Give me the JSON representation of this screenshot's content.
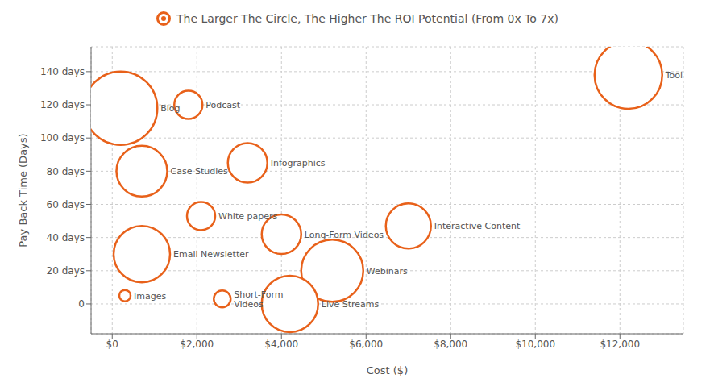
{
  "chart_data": {
    "type": "scatter",
    "title": "The Larger The Circle, The Higher The ROI Potential (From 0x To 7x)",
    "xlabel": "Cost ($)",
    "ylabel": "Pay Back Time (Days)",
    "color": "#E8611A",
    "grid": true,
    "points": [
      {
        "label": "Blog",
        "x": 200,
        "y": 118,
        "roi": 6.5
      },
      {
        "label": "Podcast",
        "x": 1800,
        "y": 120,
        "roi": 2.5
      },
      {
        "label": "Case Studies",
        "x": 700,
        "y": 80,
        "roi": 4.5
      },
      {
        "label": "Infographics",
        "x": 3200,
        "y": 85,
        "roi": 3.5
      },
      {
        "label": "White papers",
        "x": 2100,
        "y": 53,
        "roi": 2.5
      },
      {
        "label": "Long-Form Videos",
        "x": 4000,
        "y": 42,
        "roi": 3.5
      },
      {
        "label": "Interactive Content",
        "x": 7000,
        "y": 47,
        "roi": 4.0
      },
      {
        "label": "Email Newsletter",
        "x": 700,
        "y": 30,
        "roi": 5.0
      },
      {
        "label": "Webinars",
        "x": 5200,
        "y": 20,
        "roi": 5.5
      },
      {
        "label": "Images",
        "x": 300,
        "y": 5,
        "roi": 1.0
      },
      {
        "label": "Short-Form\nVideos",
        "x": 2600,
        "y": 3,
        "roi": 1.5
      },
      {
        "label": "Live Streams",
        "x": 4200,
        "y": 0,
        "roi": 5.0
      },
      {
        "label": "Tools",
        "x": 12200,
        "y": 138,
        "roi": 6.0
      }
    ],
    "xlim": [
      -500,
      13500
    ],
    "ylim": [
      -18,
      155
    ],
    "xticks": [
      {
        "value": 0,
        "label": "$0"
      },
      {
        "value": 2000,
        "label": "$2,000"
      },
      {
        "value": 4000,
        "label": "$4,000"
      },
      {
        "value": 6000,
        "label": "$6,000"
      },
      {
        "value": 8000,
        "label": "$8,000"
      },
      {
        "value": 10000,
        "label": "$10,000"
      },
      {
        "value": 12000,
        "label": "$12,000"
      }
    ],
    "yticks": [
      0,
      {
        "value": 20,
        "label": "20 days"
      },
      {
        "value": 40,
        "label": "40 days"
      },
      {
        "value": 60,
        "label": "60 days"
      },
      {
        "value": 80,
        "label": "80 days"
      },
      {
        "value": 100,
        "label": "100 days"
      },
      {
        "value": 120,
        "label": "120 days"
      },
      {
        "value": 140,
        "label": "140 days"
      }
    ]
  }
}
